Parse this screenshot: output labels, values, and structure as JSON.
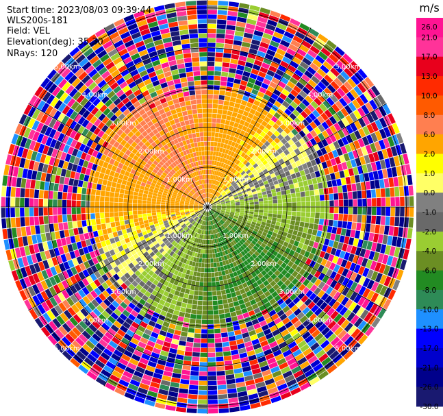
{
  "header": {
    "start_time": "Start time: 2023/08/03 09:39:44",
    "instrument": "WLS200s-181",
    "field": "Field: VEL",
    "elevation": "Elevation(deg): 35.30",
    "nrays": "NRays: 120"
  },
  "colorbar": {
    "unit": "m/s",
    "ticks": [
      "26.0",
      "21.0",
      "17.0",
      "13.0",
      "10.0",
      "8.0",
      "6.0",
      "2.0",
      "1.0",
      "0.0",
      "-1.0",
      "-2.0",
      "-4.0",
      "-6.0",
      "-8.0",
      "-10.0",
      "-13.0",
      "-17.0",
      "-21.0",
      "-26.0",
      "-30.0"
    ],
    "colors": [
      "#ff1493",
      "#ff3399",
      "#e8001c",
      "#ff2a00",
      "#ff5a00",
      "#ff7f50",
      "#ffa500",
      "#ffff00",
      "#ffff66",
      "#808080",
      "#696969",
      "#9acd32",
      "#6b8e23",
      "#228b22",
      "#2e8b57",
      "#1e90ff",
      "#0000ff",
      "#0000cd",
      "#00008b",
      "#191970"
    ]
  },
  "chart_data": {
    "type": "heatmap",
    "projection": "polar (PPI)",
    "field": "VEL",
    "units": "m/s",
    "nrays": 120,
    "range_rings_km": [
      1.0,
      2.0,
      3.0,
      4.0,
      5.0
    ],
    "ring_labels": [
      "1.00km",
      "2.00km",
      "3.00km",
      "4.00km",
      "5.00km"
    ],
    "vmin": -30.0,
    "vmax": 26.0,
    "pattern": "near-range (< ~3.2 km): positive velocities (+2 to +8 m/s) toward north and west, negative velocities (-2 to -8 m/s) toward south and east; far range: noisy random values across full scale"
  }
}
